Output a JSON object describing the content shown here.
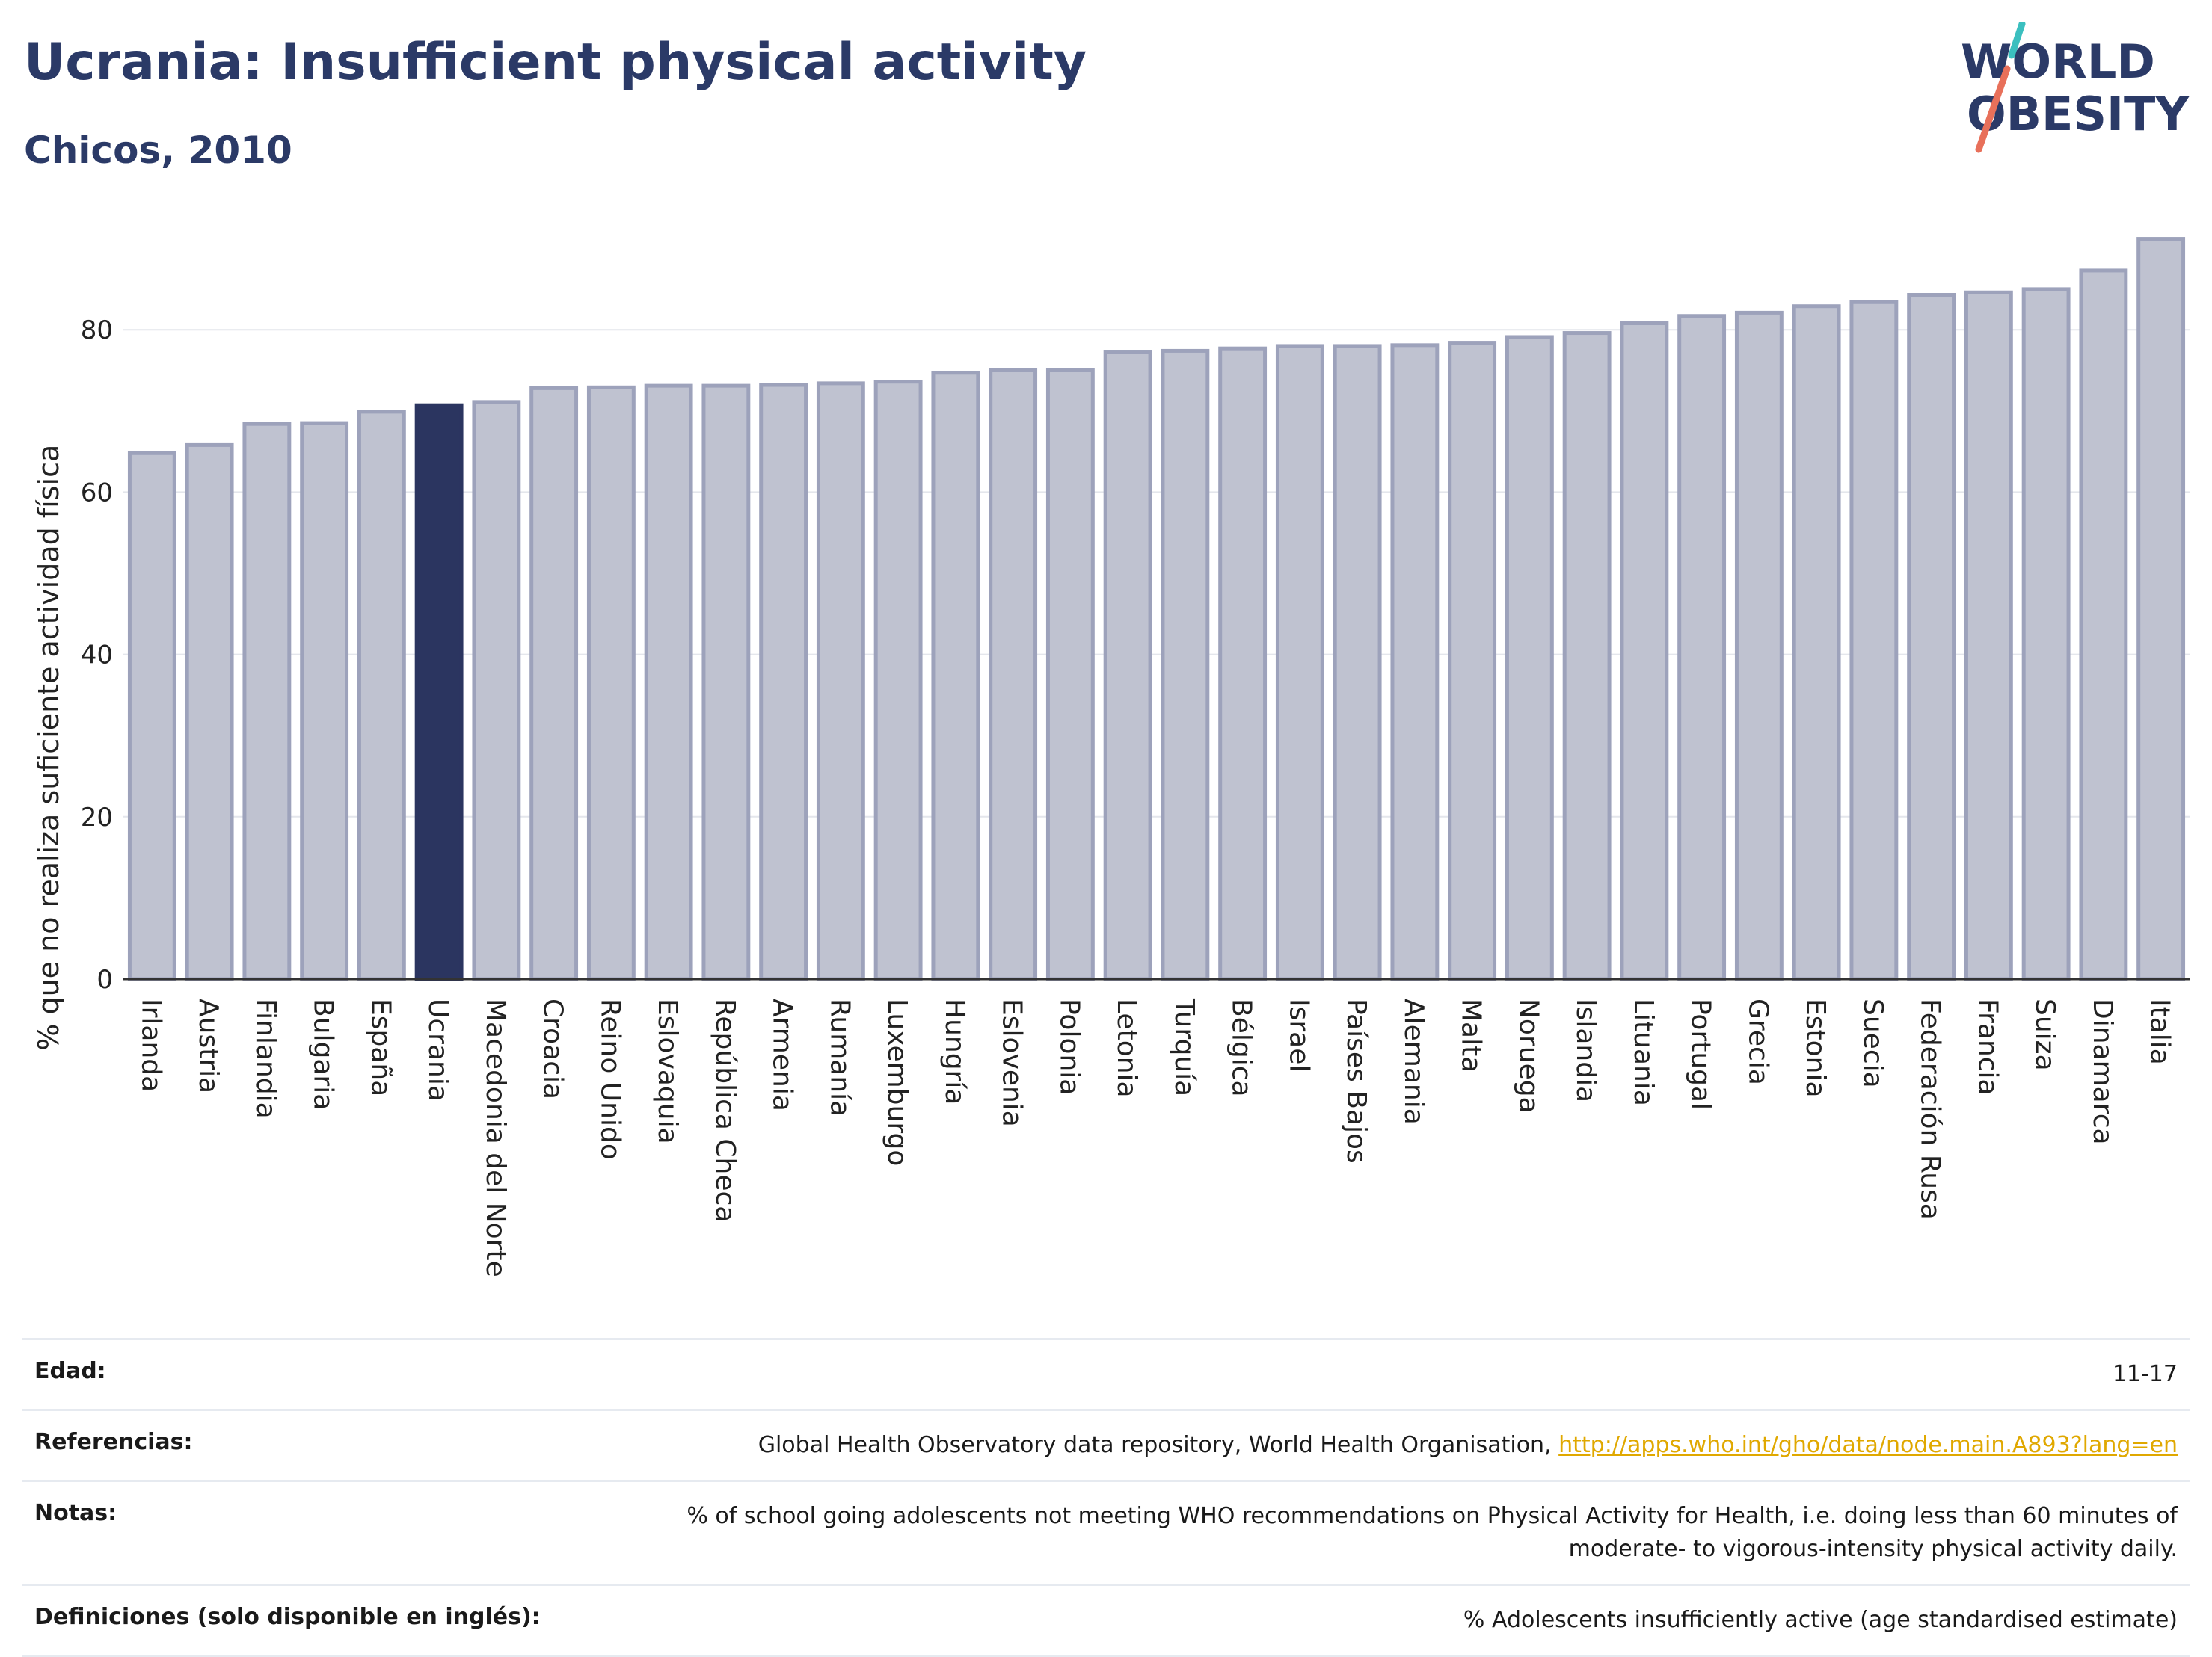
{
  "header": {
    "title": "Ucrania: Insufficient physical activity",
    "subtitle": "Chicos, 2010",
    "logo_line1": "WORLD",
    "logo_line2": "OBESITY"
  },
  "colors": {
    "bar": "#bfc2d0",
    "bar_edge": "#9da2bb",
    "highlight": "#2b3560",
    "title": "#2b3a67",
    "link": "#e0a800"
  },
  "chart_data": {
    "type": "bar",
    "title": "Ucrania: Insufficient physical activity",
    "subtitle": "Chicos, 2010",
    "ylabel": "% que no realiza suficiente actividad física",
    "ylim": [
      0,
      92
    ],
    "yticks": [
      0,
      20,
      40,
      60,
      80
    ],
    "grid": true,
    "highlight": "Ucrania",
    "categories": [
      "Irlanda",
      "Austria",
      "Finlandia",
      "Bulgaria",
      "España",
      "Ucrania",
      "Macedonia del Norte",
      "Croacia",
      "Reino Unido",
      "Eslovaquia",
      "República Checa",
      "Armenia",
      "Rumanía",
      "Luxemburgo",
      "Hungría",
      "Eslovenia",
      "Polonia",
      "Letonia",
      "Turquía",
      "Bélgica",
      "Israel",
      "Países Bajos",
      "Alemania",
      "Malta",
      "Noruega",
      "Islandia",
      "Lituania",
      "Portugal",
      "Grecia",
      "Estonia",
      "Suecia",
      "Federación Rusa",
      "Francia",
      "Suiza",
      "Dinamarca",
      "Italia"
    ],
    "values": [
      64.8,
      65.8,
      68.4,
      68.5,
      69.9,
      70.7,
      71.1,
      72.8,
      72.9,
      73.1,
      73.1,
      73.2,
      73.4,
      73.6,
      74.7,
      75.0,
      75.0,
      77.3,
      77.4,
      77.7,
      78.0,
      78.0,
      78.1,
      78.4,
      79.1,
      79.6,
      80.8,
      81.7,
      82.1,
      82.9,
      83.4,
      84.3,
      84.6,
      85.0,
      87.3,
      91.2
    ]
  },
  "meta": {
    "age_label": "Edad:",
    "age_value": "11-17",
    "refs_label": "Referencias:",
    "refs_text": "Global Health Observatory data repository, World Health Organisation, ",
    "refs_link": "http://apps.who.int/gho/data/node.main.A893?lang=en",
    "notes_label": "Notas:",
    "notes_line1": "% of school going adolescents not meeting WHO recommendations on Physical Activity for Health, i.e. doing less than 60 minutes of",
    "notes_line2": "moderate- to vigorous-intensity physical activity daily.",
    "defs_label": "Definiciones (solo disponible en inglés):",
    "defs_value": "% Adolescents insufficiently active (age standardised estimate)"
  }
}
